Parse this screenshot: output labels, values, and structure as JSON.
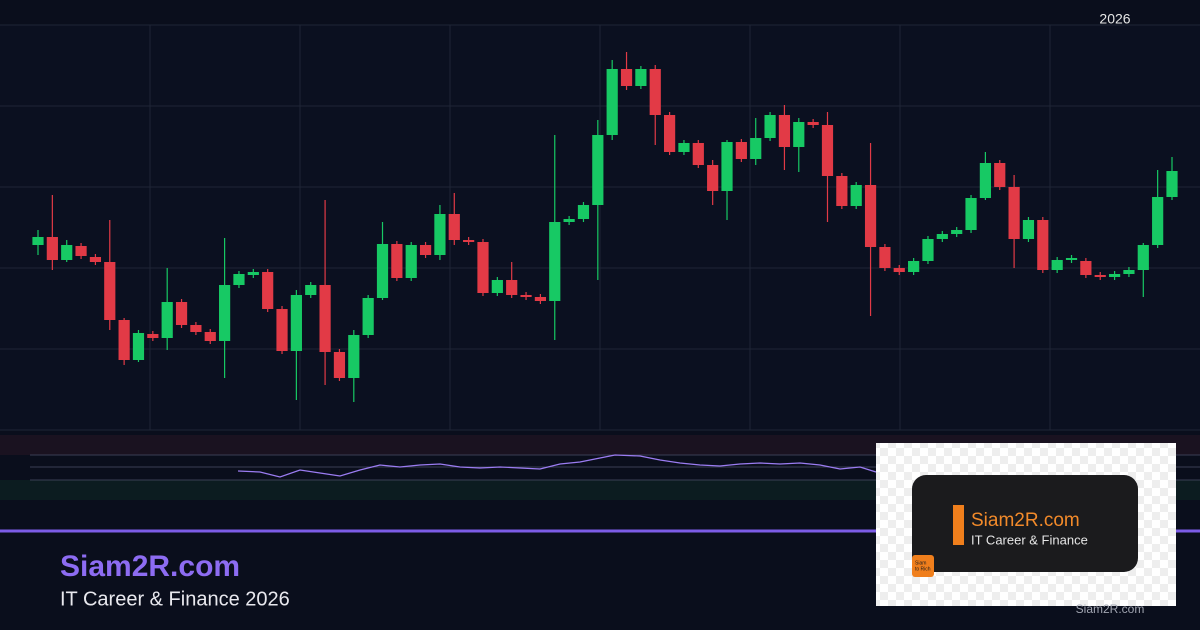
{
  "chart_data": {
    "type": "candlestick",
    "annotation": "2026",
    "open": [
      185,
      193,
      170,
      184,
      173,
      168,
      110,
      70,
      96,
      92,
      128,
      105,
      98,
      89,
      145,
      155,
      158,
      121,
      79,
      135,
      145,
      78,
      52,
      95,
      132,
      186,
      152,
      185,
      175,
      216,
      190,
      188,
      137,
      150,
      135,
      133,
      129,
      208,
      211,
      225,
      295,
      361,
      344,
      361,
      315,
      278,
      287,
      265,
      239,
      288,
      271,
      292,
      315,
      283,
      308,
      305,
      254,
      224,
      245,
      183,
      162,
      158,
      169,
      191,
      196,
      200,
      232,
      267,
      243,
      191,
      210,
      160,
      170,
      169,
      155,
      153,
      156,
      160,
      185,
      233
    ],
    "high": [
      200,
      235,
      190,
      187,
      176,
      210,
      112,
      100,
      99,
      162,
      131,
      108,
      101,
      192,
      159,
      161,
      161,
      124,
      140,
      148,
      230,
      81,
      100,
      135,
      208,
      189,
      188,
      188,
      225,
      237,
      193,
      191,
      153,
      168,
      138,
      136,
      295,
      214,
      228,
      310,
      370,
      378,
      364,
      365,
      318,
      290,
      290,
      270,
      290,
      291,
      312,
      318,
      325,
      312,
      311,
      318,
      257,
      248,
      287,
      186,
      165,
      172,
      194,
      199,
      203,
      235,
      278,
      270,
      255,
      213,
      213,
      173,
      175,
      172,
      158,
      159,
      163,
      187,
      260,
      273
    ],
    "low": [
      175,
      160,
      168,
      171,
      165,
      100,
      65,
      68,
      89,
      80,
      102,
      95,
      86,
      52,
      142,
      152,
      118,
      76,
      30,
      132,
      45,
      49,
      28,
      92,
      130,
      149,
      149,
      172,
      170,
      185,
      185,
      134,
      134,
      132,
      130,
      126,
      90,
      205,
      208,
      150,
      290,
      340,
      341,
      285,
      275,
      275,
      262,
      225,
      210,
      268,
      265,
      289,
      260,
      258,
      302,
      208,
      221,
      221,
      114,
      159,
      155,
      155,
      166,
      188,
      193,
      197,
      230,
      240,
      162,
      188,
      157,
      157,
      167,
      152,
      150,
      150,
      153,
      133,
      182,
      230
    ],
    "close": [
      193,
      170,
      185,
      174,
      168,
      110,
      70,
      97,
      92,
      128,
      105,
      98,
      89,
      145,
      156,
      158,
      121,
      79,
      135,
      145,
      78,
      52,
      95,
      132,
      186,
      152,
      185,
      175,
      216,
      190,
      188,
      137,
      150,
      135,
      133,
      129,
      208,
      211,
      225,
      295,
      361,
      344,
      361,
      315,
      278,
      287,
      265,
      239,
      288,
      271,
      292,
      315,
      283,
      308,
      305,
      254,
      224,
      245,
      183,
      162,
      158,
      169,
      191,
      196,
      200,
      232,
      267,
      243,
      191,
      210,
      160,
      170,
      172,
      155,
      153,
      156,
      160,
      185,
      233,
      259
    ],
    "ylim": [
      0,
      405
    ],
    "grid": true,
    "up_color": "#17c964",
    "down_color": "#e23a46"
  },
  "header": {
    "brand": "Siam2R.com",
    "tagline": "IT Career & Finance 2026"
  },
  "logo": {
    "title": "Siam2R.com",
    "subtitle": "IT Career & Finance",
    "badge": [
      "Siam",
      "to Rich"
    ]
  },
  "watermark": "Siam2R.com"
}
